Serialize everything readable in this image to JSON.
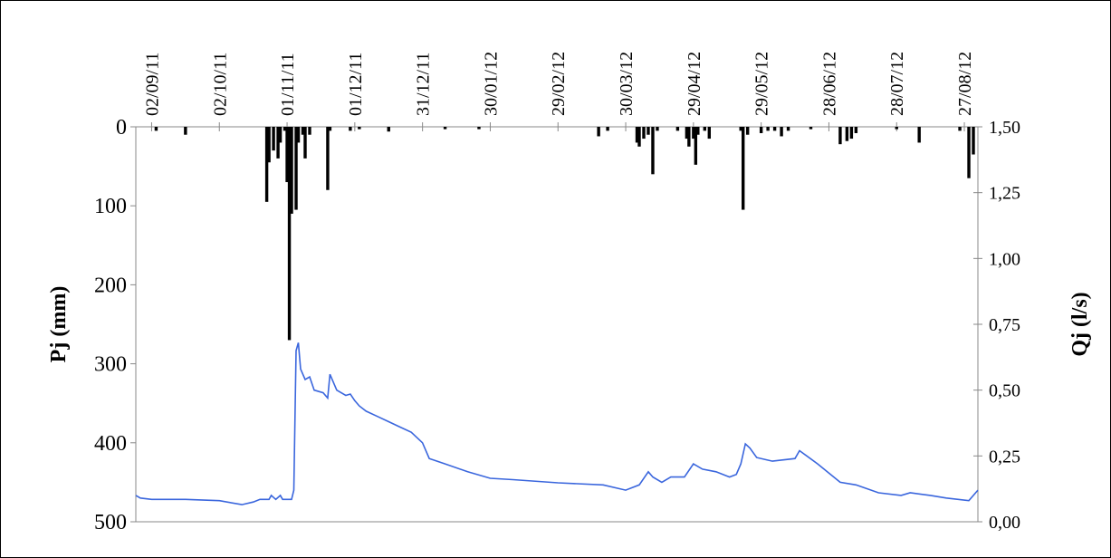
{
  "chart_data": {
    "type": "bar-line",
    "xlim": [
      -7,
      366
    ],
    "xticks": [
      {
        "value": 0,
        "label": "02/09/11"
      },
      {
        "value": 30,
        "label": "02/10/11"
      },
      {
        "value": 60,
        "label": "01/11/11"
      },
      {
        "value": 90,
        "label": "01/12/11"
      },
      {
        "value": 120,
        "label": "31/12/11"
      },
      {
        "value": 150,
        "label": "30/01/12"
      },
      {
        "value": 180,
        "label": "29/02/12"
      },
      {
        "value": 210,
        "label": "30/03/12"
      },
      {
        "value": 240,
        "label": "29/04/12"
      },
      {
        "value": 270,
        "label": "29/05/12"
      },
      {
        "value": 300,
        "label": "28/06/12"
      },
      {
        "value": 330,
        "label": "28/07/12"
      },
      {
        "value": 360,
        "label": "27/08/12"
      }
    ],
    "ylabel": "Pj (mm)",
    "ylim": [
      0,
      500
    ],
    "yticks": [
      0,
      100,
      200,
      300,
      400,
      500
    ],
    "y_inverted": true,
    "y2label": "Qj (l/s)",
    "y2lim": [
      0,
      1.5
    ],
    "y2ticks": [
      {
        "value": 0,
        "label": "0,00"
      },
      {
        "value": 0.25,
        "label": "0,25"
      },
      {
        "value": 0.5,
        "label": "0,50"
      },
      {
        "value": 0.75,
        "label": "0,75"
      },
      {
        "value": 1,
        "label": "1,00"
      },
      {
        "value": 1.25,
        "label": "1,25"
      },
      {
        "value": 1.5,
        "label": "1,50"
      }
    ],
    "series": [
      {
        "type": "bar",
        "color": "#000000",
        "x": [
          2,
          15,
          51,
          52,
          54,
          56,
          57,
          59,
          60,
          61,
          62,
          64,
          65,
          67,
          68,
          70,
          78,
          79,
          88,
          92,
          105,
          130,
          145,
          198,
          202,
          215,
          216,
          218,
          220,
          222,
          224,
          233,
          237,
          238,
          240,
          241,
          242,
          245,
          247,
          261,
          262,
          264,
          270,
          273,
          276,
          279,
          282,
          292,
          305,
          308,
          310,
          312,
          330,
          340,
          358,
          362,
          364
        ],
        "values": [
          5,
          10,
          95,
          45,
          30,
          40,
          20,
          5,
          70,
          270,
          110,
          105,
          20,
          10,
          40,
          10,
          80,
          5,
          5,
          3,
          6,
          3,
          3,
          12,
          5,
          20,
          25,
          15,
          10,
          60,
          5,
          5,
          15,
          25,
          15,
          48,
          10,
          5,
          15,
          5,
          105,
          10,
          8,
          5,
          5,
          12,
          5,
          3,
          22,
          18,
          15,
          8,
          3,
          20,
          5,
          65,
          35
        ]
      },
      {
        "type": "line",
        "axis": "y2",
        "color": "#3a66dd",
        "x": [
          -7,
          -5,
          0,
          15,
          30,
          40,
          45,
          48,
          52,
          53,
          55,
          57,
          58,
          62,
          63,
          64,
          65,
          66,
          68,
          70,
          72,
          76,
          78,
          79,
          82,
          86,
          88,
          90,
          92,
          95,
          100,
          105,
          110,
          115,
          120,
          123,
          130,
          140,
          150,
          160,
          180,
          200,
          210,
          216,
          220,
          222,
          226,
          230,
          236,
          240,
          244,
          250,
          256,
          259,
          261,
          263,
          265,
          268,
          275,
          285,
          287,
          295,
          305,
          312,
          322,
          332,
          336,
          345,
          352,
          362,
          366
        ],
        "values": [
          0.1,
          0.09,
          0.085,
          0.085,
          0.08,
          0.065,
          0.075,
          0.085,
          0.085,
          0.1,
          0.085,
          0.1,
          0.085,
          0.085,
          0.12,
          0.65,
          0.68,
          0.58,
          0.54,
          0.55,
          0.5,
          0.49,
          0.47,
          0.56,
          0.5,
          0.48,
          0.485,
          0.46,
          0.44,
          0.42,
          0.4,
          0.38,
          0.36,
          0.34,
          0.3,
          0.24,
          0.22,
          0.19,
          0.165,
          0.16,
          0.148,
          0.14,
          0.12,
          0.14,
          0.19,
          0.17,
          0.15,
          0.17,
          0.17,
          0.22,
          0.2,
          0.19,
          0.17,
          0.18,
          0.22,
          0.296,
          0.28,
          0.244,
          0.23,
          0.24,
          0.27,
          0.22,
          0.15,
          0.14,
          0.11,
          0.1,
          0.11,
          0.1,
          0.09,
          0.08,
          0.12
        ]
      }
    ]
  }
}
